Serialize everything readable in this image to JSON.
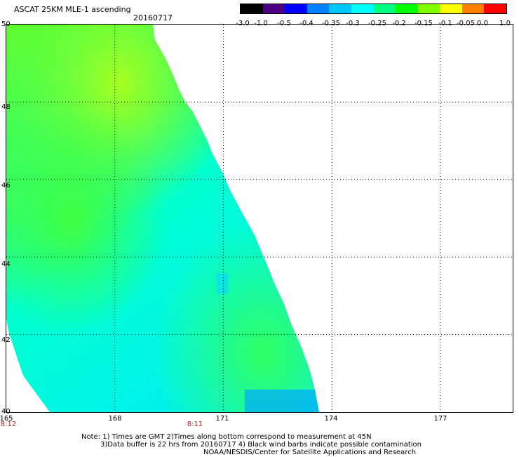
{
  "header": {
    "title": "ASCAT 25KM MLE-1 ascending",
    "date": "20160717"
  },
  "colorbar": {
    "ticks": [
      "-3.0",
      "-1.0",
      "-0.5",
      "-0.4",
      "-0.35",
      "-0.3",
      "-0.25",
      "-0.2",
      "-0.15",
      "-0.1",
      "-0.05",
      "0.0",
      "1.0"
    ],
    "colors": [
      "#000000",
      "#4b0082",
      "#0000ff",
      "#0080ff",
      "#00c8ff",
      "#00ffff",
      "#00ff80",
      "#00ff00",
      "#80ff00",
      "#ffff00",
      "#ff8000",
      "#ff0000"
    ]
  },
  "map": {
    "lat_labels": [
      "50",
      "48",
      "46",
      "44",
      "42",
      "40"
    ],
    "lon_labels": [
      "165",
      "168",
      "171",
      "174",
      "177"
    ],
    "times": [
      "8:12",
      "8:11"
    ],
    "lat_range": [
      40,
      50
    ],
    "lon_range": [
      165,
      179
    ]
  },
  "notes": {
    "line1": "Note: 1) Times are GMT 2)Times along bottom correspond to measurement at 45N",
    "line2": "3)Data buffer is 22 hrs from 20160717 4) Black wind barbs indicate possible contamination",
    "line3": "NOAA/NESDIS/Center for Satellite Applications and Research"
  }
}
